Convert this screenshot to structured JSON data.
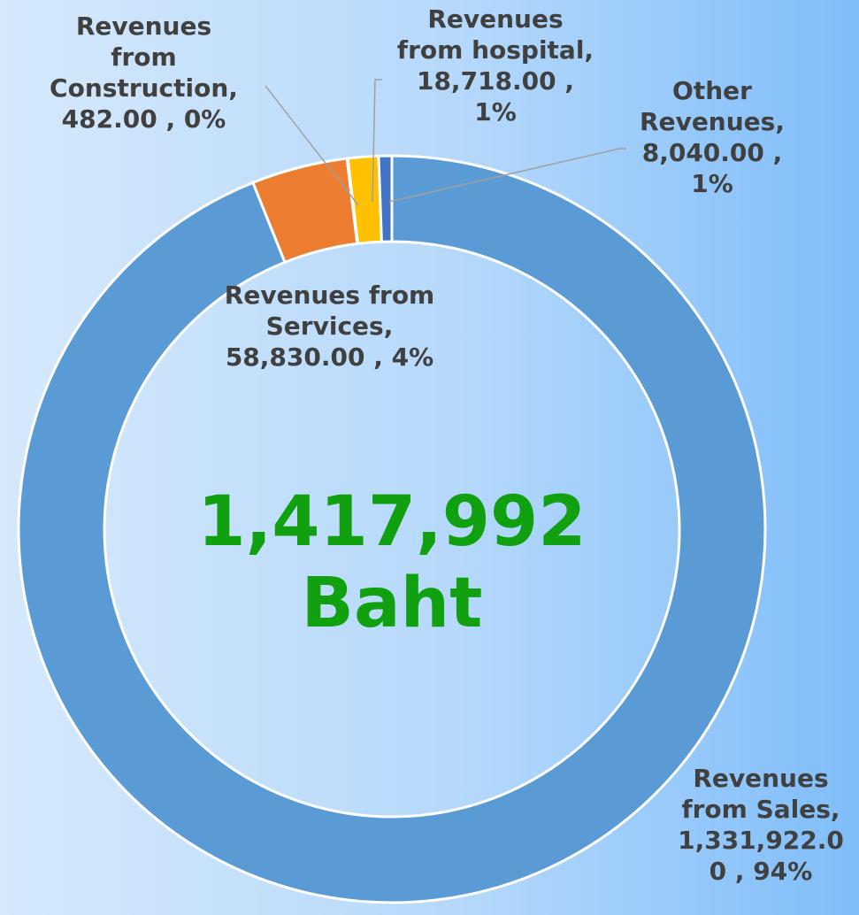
{
  "chart_data": {
    "type": "pie",
    "donut": true,
    "categories": [
      "Revenues from Sales",
      "Revenues from Services",
      "Revenues from Construction",
      "Revenues from hospital",
      "Other Revenues"
    ],
    "values": [
      1331922,
      58830,
      482,
      18718,
      8040
    ],
    "data_labels": [
      "Revenues from Sales, 1,331,922.00 , 94%",
      "Revenues from Services, 58,830.00 , 4%",
      "Revenues from Construction, 482.00 , 0%",
      "Revenues from hospital, 18,718.00 , 1%",
      "Other Revenues, 8,040.00 , 1%"
    ],
    "colors": [
      "#5b9bd5",
      "#ed7d31",
      "#a5a5a5",
      "#ffc000",
      "#4472c4"
    ],
    "total": {
      "value": 1417992,
      "label": "1,417,992"
    },
    "unit": "Baht"
  }
}
